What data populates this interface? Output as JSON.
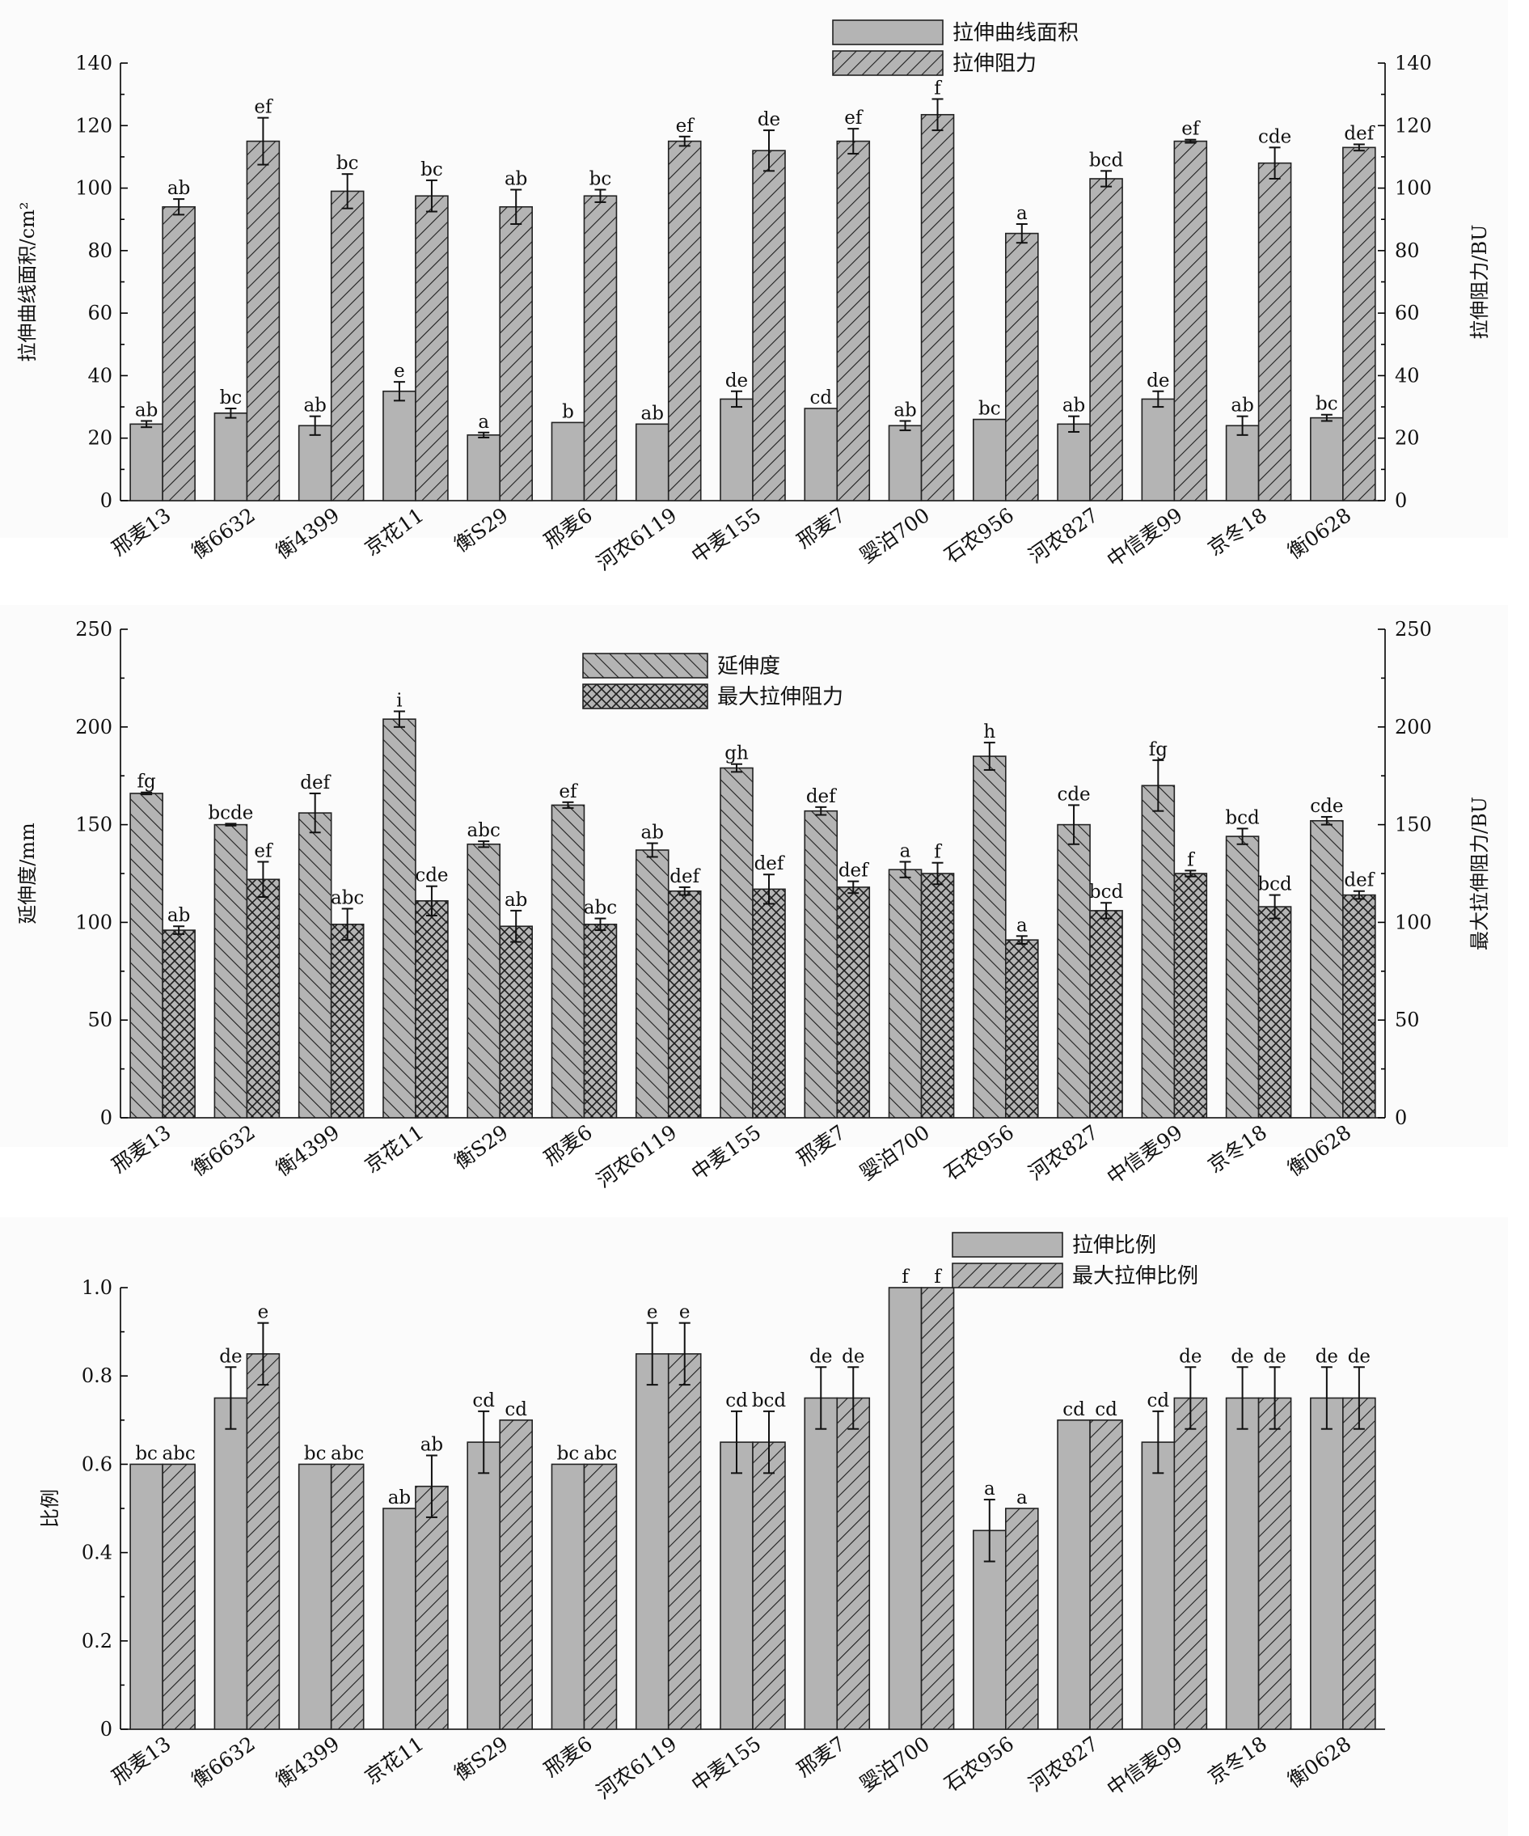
{
  "chart_data": [
    {
      "type": "bar",
      "categories": [
        "邢麦13",
        "衡6632",
        "衡4399",
        "京花11",
        "衡S29",
        "邢麦6",
        "河农6119",
        "中麦155",
        "邢麦7",
        "婴泊700",
        "石农956",
        "河农827",
        "中信麦99",
        "京冬18",
        "衡0628"
      ],
      "ylabel": "拉伸曲线面积/cm²",
      "y2label": "拉伸阻力/BU",
      "ylim": [
        0,
        140
      ],
      "y2lim": [
        0,
        140
      ],
      "yticks": [
        "0",
        "20",
        "40",
        "60",
        "80",
        "100",
        "120",
        "140"
      ],
      "y2ticks": [
        "0",
        "20",
        "40",
        "60",
        "80",
        "100",
        "120",
        "140"
      ],
      "legend_position": "top-center",
      "series": [
        {
          "name": "拉伸曲线面积",
          "fill": "solid",
          "color": "#b4b4b4",
          "values": [
            24.5,
            28,
            24,
            35,
            21,
            25,
            24.5,
            32.5,
            29.5,
            24,
            26,
            24.5,
            32.5,
            24,
            26.5
          ],
          "errors": [
            1,
            1.5,
            3,
            3,
            0.8,
            0,
            0,
            2.5,
            0,
            1.5,
            0,
            2.5,
            2.5,
            3,
            1
          ],
          "letters": [
            "ab",
            "bc",
            "ab",
            "e",
            "a",
            "b",
            "ab",
            "de",
            "cd",
            "ab",
            "bc",
            "ab",
            "de",
            "ab",
            "bc"
          ]
        },
        {
          "name": "拉伸阻力",
          "fill": "diagonal",
          "color": "#b4b4b4",
          "values": [
            94,
            115,
            99,
            97.5,
            94,
            97.5,
            115,
            112,
            115,
            123.5,
            85.5,
            103,
            115,
            108,
            113
          ],
          "errors": [
            2.5,
            7.5,
            5.5,
            5,
            5.5,
            2,
            1.5,
            6.5,
            4,
            5,
            3,
            2.5,
            0.5,
            5,
            1
          ],
          "letters": [
            "ab",
            "ef",
            "bc",
            "bc",
            "ab",
            "bc",
            "ef",
            "de",
            "ef",
            "f",
            "a",
            "bcd",
            "ef",
            "cde",
            "def"
          ]
        }
      ]
    },
    {
      "type": "bar",
      "categories": [
        "邢麦13",
        "衡6632",
        "衡4399",
        "京花11",
        "衡S29",
        "邢麦6",
        "河农6119",
        "中麦155",
        "邢麦7",
        "婴泊700",
        "石农956",
        "河农827",
        "中信麦99",
        "京冬18",
        "衡0628"
      ],
      "ylabel": "延伸度/mm",
      "y2label": "最大拉伸阻力/BU",
      "ylim": [
        0,
        250
      ],
      "y2lim": [
        0,
        250
      ],
      "yticks": [
        "0",
        "50",
        "100",
        "150",
        "200",
        "250"
      ],
      "y2ticks": [
        "0",
        "50",
        "100",
        "150",
        "200",
        "250"
      ],
      "legend_position": "top-center",
      "series": [
        {
          "name": "延伸度",
          "fill": "back-diagonal",
          "color": "#b4b4b4",
          "values": [
            166,
            150,
            156,
            204,
            140,
            160,
            137,
            179,
            157,
            127,
            185,
            150,
            170,
            144,
            152
          ],
          "errors": [
            0.5,
            0.5,
            10,
            4,
            1.5,
            1.5,
            3.5,
            2,
            2,
            4,
            7,
            10,
            13,
            4,
            2
          ],
          "letters": [
            "fg",
            "bcde",
            "def",
            "i",
            "abc",
            "ef",
            "ab",
            "gh",
            "def",
            "a",
            "h",
            "cde",
            "fg",
            "bcd",
            "cde"
          ]
        },
        {
          "name": "最大拉伸阻力",
          "fill": "crosshatch",
          "color": "#b4b4b4",
          "values": [
            96,
            122,
            99,
            111,
            98,
            99,
            116,
            117,
            118,
            125,
            91,
            106,
            125,
            108,
            114
          ],
          "errors": [
            2,
            9,
            8,
            7.5,
            8,
            3,
            2,
            7.5,
            3,
            5.5,
            2,
            4,
            1.5,
            6,
            2
          ],
          "letters": [
            "ab",
            "ef",
            "abc",
            "cde",
            "ab",
            "abc",
            "def",
            "def",
            "def",
            "f",
            "a",
            "bcd",
            "f",
            "bcd",
            "def"
          ]
        }
      ]
    },
    {
      "type": "bar",
      "categories": [
        "邢麦13",
        "衡6632",
        "衡4399",
        "京花11",
        "衡S29",
        "邢麦6",
        "河农6119",
        "中麦155",
        "邢麦7",
        "婴泊700",
        "石农956",
        "河农827",
        "中信麦99",
        "京冬18",
        "衡0628"
      ],
      "ylabel": "比例",
      "ylim": [
        0,
        1.0
      ],
      "yticks": [
        "0",
        "0.2",
        "0.4",
        "0.6",
        "0.8",
        "1.0"
      ],
      "legend_position": "top-right",
      "series": [
        {
          "name": "拉伸比例",
          "fill": "solid",
          "color": "#b4b4b4",
          "values": [
            0.6,
            0.75,
            0.6,
            0.5,
            0.65,
            0.6,
            0.85,
            0.65,
            0.75,
            1.0,
            0.45,
            0.7,
            0.65,
            0.75,
            0.75
          ],
          "errors": [
            0,
            0.07,
            0,
            0,
            0.07,
            0,
            0.07,
            0.07,
            0.07,
            0,
            0.07,
            0,
            0.07,
            0.07,
            0.07
          ],
          "letters": [
            "bc",
            "de",
            "bc",
            "ab",
            "cd",
            "bc",
            "e",
            "cd",
            "de",
            "f",
            "a",
            "cd",
            "cd",
            "de",
            "de"
          ]
        },
        {
          "name": "最大拉伸比例",
          "fill": "diagonal",
          "color": "#b4b4b4",
          "values": [
            0.6,
            0.85,
            0.6,
            0.55,
            0.7,
            0.6,
            0.85,
            0.65,
            0.75,
            1.0,
            0.5,
            0.7,
            0.75,
            0.75,
            0.75
          ],
          "errors": [
            0,
            0.07,
            0,
            0.07,
            0,
            0,
            0.07,
            0.07,
            0.07,
            0,
            0,
            0,
            0.07,
            0.07,
            0.07
          ],
          "letters": [
            "abc",
            "e",
            "abc",
            "ab",
            "cd",
            "abc",
            "e",
            "bcd",
            "de",
            "f",
            "a",
            "cd",
            "de",
            "de",
            "de"
          ]
        }
      ]
    }
  ]
}
